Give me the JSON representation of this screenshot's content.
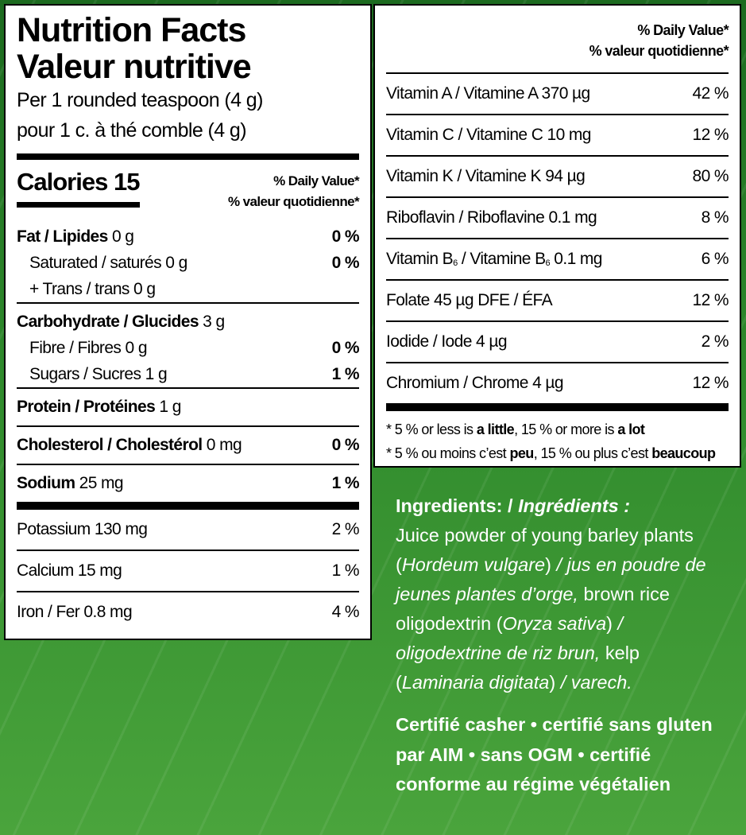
{
  "nutrition": {
    "title": [
      "Nutrition Facts",
      "Valeur nutritive"
    ],
    "serving": [
      "Per 1 rounded teaspoon (4 g)",
      "pour 1 c. à thé comble (4 g)"
    ],
    "calories": "Calories 15",
    "dv_header": [
      "% Daily Value*",
      "% valeur quotidienne*"
    ],
    "rows": [
      {
        "name": "Fat / Lipides",
        "amount": " 0 g",
        "dv": "0 %"
      },
      {
        "name": "Saturated / saturés 0 g",
        "dv": "0 %"
      },
      {
        "name": "+ Trans / trans 0 g"
      },
      {
        "name": "Carbohydrate / Glucides",
        "amount": " 3 g"
      },
      {
        "name": "Fibre / Fibres 0 g",
        "dv": "0 %"
      },
      {
        "name": "Sugars / Sucres 1 g",
        "dv": "1 %"
      },
      {
        "name": "Protein / Protéines",
        "amount": " 1 g"
      },
      {
        "name": "Cholesterol / Cholestérol",
        "amount": " 0 mg",
        "dv": "0 %"
      },
      {
        "name": "Sodium",
        "amount": " 25 mg",
        "dv": "1 %"
      },
      {
        "name": "Potassium 130 mg",
        "dv": "2 %"
      },
      {
        "name": "Calcium 15 mg",
        "dv": "1 %"
      },
      {
        "name": "Iron / Fer 0.8 mg",
        "dv": "4 %"
      }
    ]
  },
  "vitamins": {
    "dv_header": [
      "% Daily Value*",
      "% valeur quotidienne*"
    ],
    "rows": [
      {
        "name": "Vitamin A / Vitamine A 370 µg",
        "dv": "42 %"
      },
      {
        "name": "Vitamin C / Vitamine C 10 mg",
        "dv": "12 %"
      },
      {
        "name": "Vitamin K / Vitamine K 94 µg",
        "dv": "80 %"
      },
      {
        "name": "Riboflavin / Riboflavine 0.1 mg",
        "dv": "8 %"
      },
      {
        "name_parts": [
          "Vitamin B",
          "6",
          " / Vitamine B",
          "6",
          " 0.1 mg"
        ],
        "dv": "6 %"
      },
      {
        "name": "Folate 45 µg DFE / ÉFA",
        "dv": "12 %"
      },
      {
        "name": "Iodide / Iode 4 µg",
        "dv": "2 %"
      },
      {
        "name": "Chromium / Chrome 4 µg",
        "dv": "12 %"
      }
    ],
    "footnotes": [
      [
        "* 5 % or less is ",
        "a little",
        ", 15 % or more is ",
        "a lot"
      ],
      [
        "* 5 % ou moins c’est ",
        "peu",
        ", 15 % ou plus c’est ",
        "beaucoup"
      ]
    ]
  },
  "ingredients": {
    "heading": [
      "Ingredients: / ",
      "Ingrédients :"
    ],
    "body": [
      "Juice powder of young barley plants  (",
      "Hordeum vulgare",
      ") ",
      "/ jus en poudre de jeunes plantes d’orge,",
      " brown rice oligodextrin (",
      "Oryza sativa",
      ") ",
      "/ oligodextrine de riz brun,",
      " kelp (",
      "Laminaria digitata",
      ") ",
      "/ varech."
    ],
    "certification": "Certifié casher • certifié sans gluten par AIM • sans OGM • certifié conforme au régime végétalien"
  }
}
